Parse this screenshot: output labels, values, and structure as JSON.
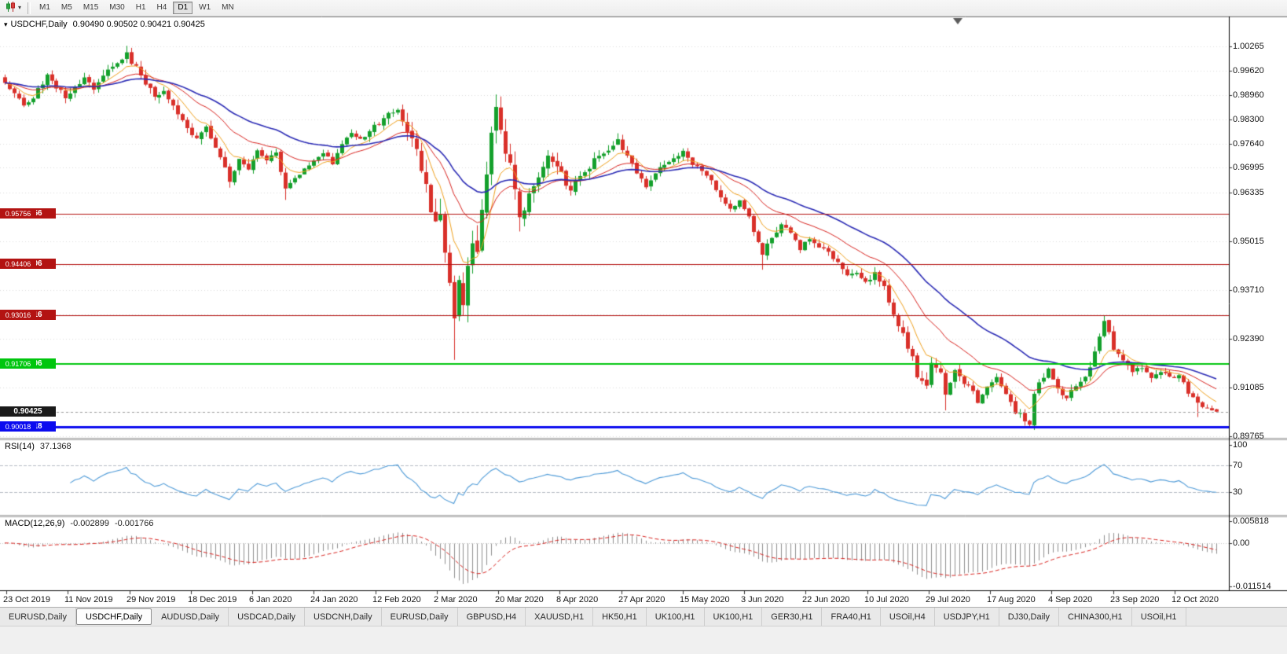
{
  "toolbar": {
    "timeframes": [
      "M1",
      "M5",
      "M15",
      "M30",
      "H1",
      "H4",
      "D1",
      "W1",
      "MN"
    ],
    "active_timeframe": "D1",
    "chart_type_icon": "candlestick-chart-icon"
  },
  "chart": {
    "symbol_label": "USDCHF,Daily",
    "ohlc": "0.90490 0.90502 0.90421 0.90425"
  },
  "indicators": {
    "rsi": {
      "title": "RSI(14)",
      "value": "37.1368"
    },
    "macd": {
      "title": "MACD(12,26,9)",
      "value_main": "-0.002899",
      "value_signal": "-0.001766"
    }
  },
  "tabs": {
    "items": [
      "EURUSD,Daily",
      "USDCHF,Daily",
      "AUDUSD,Daily",
      "USDCAD,Daily",
      "USDCNH,Daily",
      "EURUSD,Daily",
      "GBPUSD,H4",
      "XAUUSD,H1",
      "HK50,H1",
      "UK100,H1",
      "UK100,H1",
      "GER30,H1",
      "FRA40,H1",
      "USOil,H4",
      "USDJPY,H1",
      "DJ30,Daily",
      "CHINA300,H1",
      "USOil,H1"
    ],
    "active_index": 1
  },
  "chart_data": {
    "type": "candlestick",
    "symbol": "USDCHF",
    "timeframe": "Daily",
    "bars": 260,
    "colors": {
      "up": "#14a02c",
      "down": "#d9302a",
      "grid": "#dcdcdc",
      "rsi": "#4f9bd8",
      "macd_hist": "#8f8f8f",
      "macd_signal": "#d9231f",
      "current": "#1a1a1a",
      "line_red": "#b31312",
      "line_green": "#00c60e",
      "line_blue": "#0b0bef"
    },
    "price_axis": {
      "max": 1.0105,
      "min": 0.8972,
      "ticks": [
        {
          "p": 1.00265,
          "label": "1.00265"
        },
        {
          "p": 0.9962,
          "label": "0.99620"
        },
        {
          "p": 0.9896,
          "label": "0.98960"
        },
        {
          "p": 0.983,
          "label": "0.98300"
        },
        {
          "p": 0.9764,
          "label": "0.97640"
        },
        {
          "p": 0.96995,
          "label": "0.96995"
        },
        {
          "p": 0.96335,
          "label": "0.96335"
        },
        {
          "p": 0.95675,
          "label": ""
        },
        {
          "p": 0.95015,
          "label": "0.95015"
        },
        {
          "p": 0.94355,
          "label": ""
        },
        {
          "p": 0.9371,
          "label": "0.93710"
        },
        {
          "p": 0.9305,
          "label": ""
        },
        {
          "p": 0.9239,
          "label": "0.92390"
        },
        {
          "p": 0.9173,
          "label": ""
        },
        {
          "p": 0.91085,
          "label": "0.91085"
        },
        {
          "p": 0.90425,
          "label": ""
        },
        {
          "p": 0.89765,
          "label": "0.89765"
        }
      ]
    },
    "horizontal_lines": [
      {
        "price": 0.95756,
        "label": "0.95756",
        "color": "#b31312",
        "width": 1
      },
      {
        "price": 0.94406,
        "label": "0.94406",
        "color": "#b31312",
        "width": 1
      },
      {
        "price": 0.93016,
        "label": "0.93016",
        "color": "#b31312",
        "width": 1
      },
      {
        "price": 0.91706,
        "label": "0.91706",
        "color": "#00c60e",
        "width": 2
      },
      {
        "price": 0.90018,
        "label": "0.90018",
        "color": "#0b0bef",
        "width": 3
      }
    ],
    "current_price": {
      "value": 0.90425,
      "label": "0.90425"
    },
    "last_candle": {
      "o": 0.9049,
      "h": 0.90502,
      "l": 0.90421,
      "c": 0.90425
    },
    "time_axis_labels": [
      "23 Oct 2019",
      "11 Nov 2019",
      "29 Nov 2019",
      "18 Dec 2019",
      "6 Jan 2020",
      "24 Jan 2020",
      "12 Feb 2020",
      "2 Mar 2020",
      "20 Mar 2020",
      "8 Apr 2020",
      "27 Apr 2020",
      "15 May 2020",
      "3 Jun 2020",
      "22 Jun 2020",
      "10 Jul 2020",
      "29 Jul 2020",
      "17 Aug 2020",
      "4 Sep 2020",
      "23 Sep 2020",
      "12 Oct 2020"
    ],
    "anchors": [
      [
        0,
        0.9925
      ],
      [
        2,
        0.9902
      ],
      [
        4,
        0.9868
      ],
      [
        6,
        0.9892
      ],
      [
        9,
        0.9946
      ],
      [
        11,
        0.9915
      ],
      [
        13,
        0.9893
      ],
      [
        15,
        0.9918
      ],
      [
        17,
        0.9936
      ],
      [
        19,
        0.9912
      ],
      [
        22,
        0.9962
      ],
      [
        24,
        0.9986
      ],
      [
        26,
        1.0004
      ],
      [
        28,
        0.9968
      ],
      [
        30,
        0.9926
      ],
      [
        32,
        0.9891
      ],
      [
        34,
        0.9912
      ],
      [
        36,
        0.9862
      ],
      [
        38,
        0.9825
      ],
      [
        39,
        0.98
      ],
      [
        41,
        0.9782
      ],
      [
        43,
        0.9812
      ],
      [
        45,
        0.9752
      ],
      [
        47,
        0.9697
      ],
      [
        48,
        0.9666
      ],
      [
        50,
        0.9718
      ],
      [
        52,
        0.9699
      ],
      [
        54,
        0.9746
      ],
      [
        56,
        0.9722
      ],
      [
        58,
        0.9739
      ],
      [
        60,
        0.9646
      ],
      [
        62,
        0.9668
      ],
      [
        64,
        0.9696
      ],
      [
        66,
        0.9713
      ],
      [
        68,
        0.9739
      ],
      [
        70,
        0.9713
      ],
      [
        72,
        0.9763
      ],
      [
        74,
        0.9791
      ],
      [
        76,
        0.9776
      ],
      [
        78,
        0.9801
      ],
      [
        80,
        0.9819
      ],
      [
        82,
        0.9841
      ],
      [
        84,
        0.9853
      ],
      [
        86,
        0.9789
      ],
      [
        88,
        0.9749
      ],
      [
        90,
        0.9661
      ],
      [
        91,
        0.9591
      ],
      [
        92,
        0.9566
      ],
      [
        93,
        0.9579
      ],
      [
        94,
        0.9481
      ],
      [
        95,
        0.9396
      ],
      [
        96,
        0.9312
      ],
      [
        97,
        0.9379
      ],
      [
        98,
        0.9346
      ],
      [
        99,
        0.9453
      ],
      [
        100,
        0.9516
      ],
      [
        101,
        0.9483
      ],
      [
        102,
        0.9581
      ],
      [
        103,
        0.9666
      ],
      [
        104,
        0.9789
      ],
      [
        105,
        0.9846
      ],
      [
        106,
        0.9806
      ],
      [
        107,
        0.9746
      ],
      [
        108,
        0.9701
      ],
      [
        109,
        0.9626
      ],
      [
        110,
        0.9573
      ],
      [
        111,
        0.9596
      ],
      [
        112,
        0.9636
      ],
      [
        114,
        0.9683
      ],
      [
        116,
        0.9743
      ],
      [
        117,
        0.9723
      ],
      [
        119,
        0.9683
      ],
      [
        121,
        0.9636
      ],
      [
        123,
        0.9681
      ],
      [
        125,
        0.9706
      ],
      [
        127,
        0.9733
      ],
      [
        129,
        0.9749
      ],
      [
        131,
        0.9773
      ],
      [
        133,
        0.9729
      ],
      [
        135,
        0.9683
      ],
      [
        137,
        0.9653
      ],
      [
        139,
        0.9683
      ],
      [
        141,
        0.9713
      ],
      [
        143,
        0.9723
      ],
      [
        145,
        0.9743
      ],
      [
        147,
        0.9713
      ],
      [
        149,
        0.9693
      ],
      [
        151,
        0.9663
      ],
      [
        153,
        0.9623
      ],
      [
        155,
        0.9593
      ],
      [
        157,
        0.9613
      ],
      [
        159,
        0.9563
      ],
      [
        161,
        0.9503
      ],
      [
        162,
        0.9463
      ],
      [
        164,
        0.9513
      ],
      [
        166,
        0.9543
      ],
      [
        168,
        0.9523
      ],
      [
        170,
        0.9483
      ],
      [
        172,
        0.9513
      ],
      [
        174,
        0.9483
      ],
      [
        176,
        0.9473
      ],
      [
        178,
        0.9443
      ],
      [
        180,
        0.9413
      ],
      [
        182,
        0.9419
      ],
      [
        184,
        0.9393
      ],
      [
        186,
        0.9413
      ],
      [
        188,
        0.9383
      ],
      [
        190,
        0.9303
      ],
      [
        192,
        0.9253
      ],
      [
        194,
        0.9183
      ],
      [
        195,
        0.9136
      ],
      [
        197,
        0.9113
      ],
      [
        198,
        0.9179
      ],
      [
        200,
        0.9143
      ],
      [
        201,
        0.9093
      ],
      [
        203,
        0.9153
      ],
      [
        205,
        0.9123
      ],
      [
        207,
        0.9093
      ],
      [
        208,
        0.9063
      ],
      [
        210,
        0.9113
      ],
      [
        212,
        0.9133
      ],
      [
        214,
        0.9093
      ],
      [
        216,
        0.9043
      ],
      [
        218,
        0.9023
      ],
      [
        219,
        0.9013
      ],
      [
        220,
        0.9089
      ],
      [
        221,
        0.9123
      ],
      [
        223,
        0.9153
      ],
      [
        225,
        0.9103
      ],
      [
        227,
        0.9083
      ],
      [
        229,
        0.9113
      ],
      [
        231,
        0.9133
      ],
      [
        233,
        0.9203
      ],
      [
        235,
        0.9289
      ],
      [
        236,
        0.9259
      ],
      [
        237,
        0.9213
      ],
      [
        239,
        0.9183
      ],
      [
        241,
        0.9153
      ],
      [
        243,
        0.9163
      ],
      [
        245,
        0.9133
      ],
      [
        247,
        0.9153
      ],
      [
        249,
        0.9133
      ],
      [
        251,
        0.9143
      ],
      [
        253,
        0.9093
      ],
      [
        255,
        0.9063
      ],
      [
        257,
        0.9049
      ],
      [
        259,
        0.90425
      ]
    ],
    "volatility": [
      [
        0,
        0.0016
      ],
      [
        25,
        0.0018
      ],
      [
        45,
        0.0018
      ],
      [
        60,
        0.0015
      ],
      [
        80,
        0.0015
      ],
      [
        88,
        0.0032
      ],
      [
        94,
        0.0055
      ],
      [
        100,
        0.0058
      ],
      [
        106,
        0.0048
      ],
      [
        112,
        0.0036
      ],
      [
        120,
        0.0026
      ],
      [
        135,
        0.0016
      ],
      [
        150,
        0.0014
      ],
      [
        160,
        0.002
      ],
      [
        170,
        0.0015
      ],
      [
        185,
        0.0016
      ],
      [
        195,
        0.0024
      ],
      [
        205,
        0.0018
      ],
      [
        215,
        0.0018
      ],
      [
        222,
        0.0016
      ],
      [
        232,
        0.0018
      ],
      [
        238,
        0.0016
      ],
      [
        248,
        0.0013
      ],
      [
        259,
        0.001
      ]
    ],
    "wick_events": [
      {
        "day": 26,
        "high": 1.0028
      },
      {
        "day": 48,
        "low": 0.9646
      },
      {
        "day": 60,
        "low": 0.9613
      },
      {
        "day": 84,
        "high": 0.986
      },
      {
        "day": 96,
        "low": 0.9182
      },
      {
        "day": 105,
        "high": 0.9897
      },
      {
        "day": 110,
        "low": 0.9528
      },
      {
        "day": 162,
        "low": 0.9425
      },
      {
        "day": 201,
        "low": 0.9046
      },
      {
        "day": 219,
        "low": 0.8998
      },
      {
        "day": 235,
        "high": 0.9296
      },
      {
        "day": 255,
        "low": 0.9028
      }
    ],
    "moving_averages": [
      {
        "period": 8,
        "color": "#f0a11e",
        "width": 1
      },
      {
        "period": 20,
        "color": "#d9231f",
        "width": 1
      },
      {
        "period": 40,
        "color": "#2b2bb5",
        "width": 1.6
      }
    ],
    "rsi": {
      "period": 14,
      "color": "#4f9bd8",
      "levels": [
        70,
        30
      ],
      "axis_values": [
        100,
        70,
        30
      ],
      "axis_labels": [
        "100",
        "70",
        "30"
      ],
      "scale_max": 107,
      "scale_min": -4
    },
    "macd": {
      "fast": 12,
      "slow": 26,
      "signal": 9,
      "axis_values": [
        0.005818,
        0,
        -0.011514
      ],
      "axis_labels": [
        "0.005818",
        "0.00",
        "-0.011514"
      ],
      "scale_max": 0.0068,
      "scale_min": -0.0125
    }
  }
}
